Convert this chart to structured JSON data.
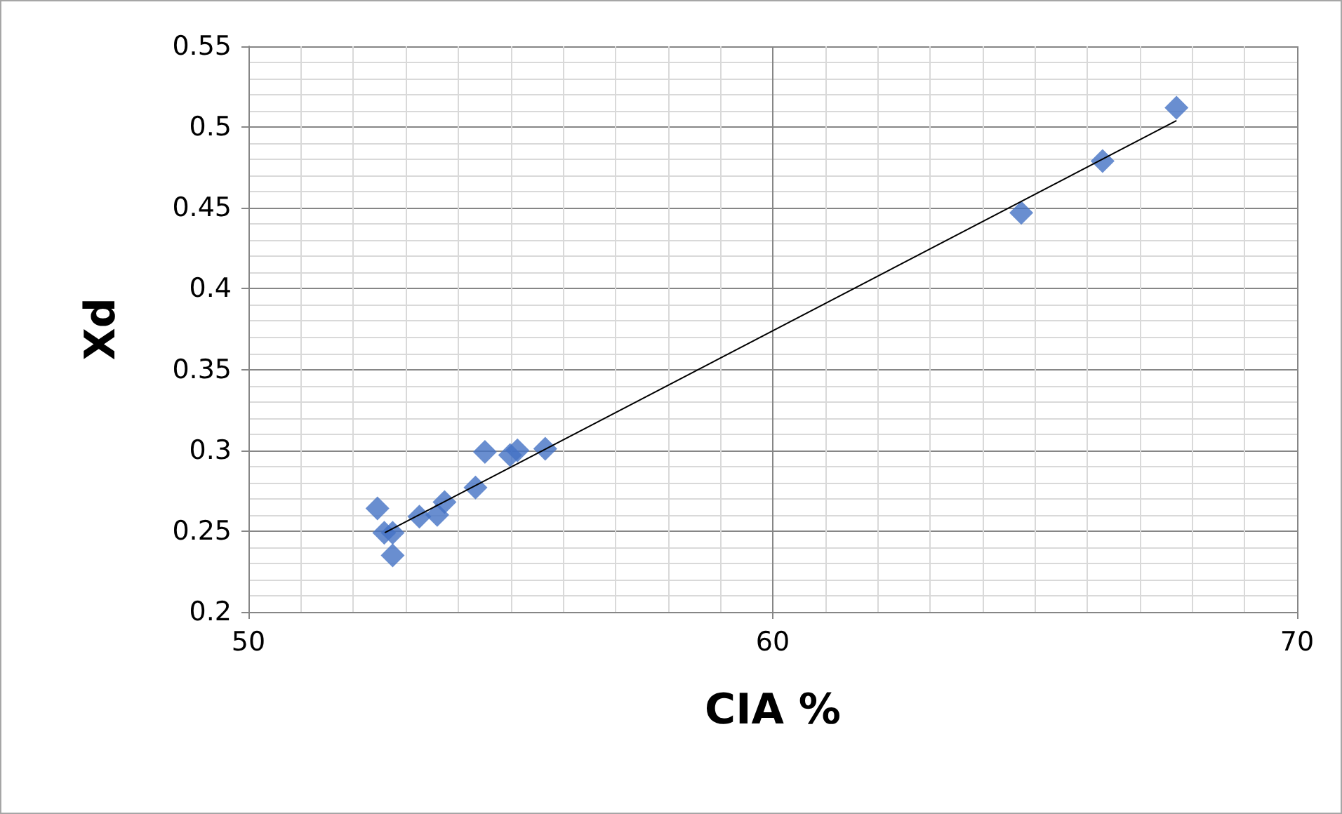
{
  "chart_data": {
    "type": "scatter",
    "xlabel": "CIA %",
    "ylabel": "Xd",
    "xlim": [
      50,
      70
    ],
    "xticks": [
      50,
      60,
      70
    ],
    "ylim": [
      0.2,
      0.55
    ],
    "yticks": [
      0.2,
      0.25,
      0.3,
      0.35,
      0.4,
      0.45,
      0.5,
      0.55
    ],
    "grid": true,
    "marker": "diamond",
    "series": [
      {
        "color": "#4472c4",
        "x": [
          52.46,
          52.59,
          52.75,
          52.75,
          53.26,
          53.6,
          53.74,
          54.33,
          54.51,
          54.99,
          55.13,
          55.66,
          64.74,
          66.29,
          67.7
        ],
        "values": [
          0.264,
          0.249,
          0.249,
          0.235,
          0.259,
          0.26,
          0.268,
          0.277,
          0.299,
          0.297,
          0.3,
          0.301,
          0.447,
          0.479,
          0.512
        ]
      },
      {
        "type": "line",
        "color": "#000000",
        "marker": "none",
        "line_style": "solid",
        "x": [
          52.6,
          67.7
        ],
        "values": [
          0.249,
          0.504
        ]
      }
    ]
  }
}
